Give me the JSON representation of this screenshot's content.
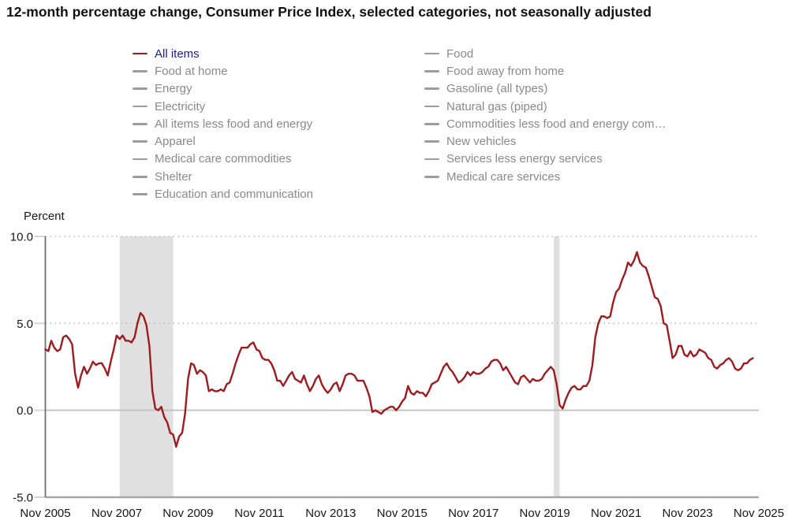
{
  "title": {
    "text": "12-month percentage change, Consumer Price Index, selected categories, not seasonally adjusted"
  },
  "legend": {
    "active_item": "All items",
    "active_label_color": "#1a1a9c",
    "active_swatch_color": "#9e1b1e",
    "inactive_label_color": "#8a8a8a",
    "inactive_swatch_color": "#9c9c9c",
    "columns": [
      {
        "items": [
          "All items",
          "Food at home",
          "Energy",
          "Electricity",
          "All items less food and energy",
          "Apparel",
          "Medical care commodities",
          "Shelter",
          "Education and communication"
        ]
      },
      {
        "items": [
          "Food",
          "Food away from home",
          "Gasoline (all types)",
          "Natural gas (piped)",
          "Commodities less food and energy com…",
          "New vehicles",
          "Services less energy services",
          "Medical care services"
        ]
      }
    ]
  },
  "chart_data": {
    "type": "line",
    "title": "12-month percentage change, Consumer Price Index, selected categories, not seasonally adjusted",
    "ylabel": "Percent",
    "xlabel": "",
    "ylim": [
      -5,
      10
    ],
    "grid": "dotted horizontal at 5 and 10, solid at 0",
    "legend_position": "top",
    "yticks": [
      {
        "value": 10,
        "label": "10.0",
        "style": "dotted"
      },
      {
        "value": 5,
        "label": "5.0",
        "style": "dotted"
      },
      {
        "value": 0,
        "label": "0.0",
        "style": "solid"
      },
      {
        "value": -5,
        "label": "-5.0",
        "style": "axis"
      }
    ],
    "x_start": "2005-11",
    "x_end": "2025-11",
    "xticks": [
      "Nov 2005",
      "Nov 2007",
      "Nov 2009",
      "Nov 2011",
      "Nov 2013",
      "Nov 2015",
      "Nov 2017",
      "Nov 2019",
      "Nov 2021",
      "Nov 2023",
      "Nov 2025"
    ],
    "xtick_interval_months": 24,
    "recession_bands": [
      {
        "from": "2007-12",
        "to": "2009-06"
      },
      {
        "from": "2020-02",
        "to": "2020-04"
      }
    ],
    "band_color": "#e0e0e0",
    "series": [
      {
        "name": "All items",
        "color": "#9e1b1e",
        "start": "2005-11",
        "frequency": "monthly",
        "values": [
          3.5,
          3.4,
          4.0,
          3.6,
          3.4,
          3.5,
          4.2,
          4.3,
          4.1,
          3.8,
          2.1,
          1.3,
          2.0,
          2.5,
          2.1,
          2.4,
          2.8,
          2.6,
          2.7,
          2.7,
          2.4,
          2.0,
          2.8,
          3.5,
          4.3,
          4.1,
          4.3,
          4.0,
          4.0,
          3.9,
          4.2,
          5.0,
          5.6,
          5.4,
          4.9,
          3.7,
          1.1,
          0.1,
          0.0,
          0.2,
          -0.4,
          -0.7,
          -1.3,
          -1.4,
          -2.1,
          -1.5,
          -1.3,
          -0.2,
          1.8,
          2.7,
          2.6,
          2.1,
          2.3,
          2.2,
          2.0,
          1.1,
          1.2,
          1.1,
          1.1,
          1.2,
          1.1,
          1.5,
          1.6,
          2.1,
          2.7,
          3.2,
          3.6,
          3.6,
          3.6,
          3.8,
          3.9,
          3.5,
          3.4,
          3.0,
          2.9,
          2.9,
          2.7,
          2.3,
          1.7,
          1.7,
          1.4,
          1.7,
          2.0,
          2.2,
          1.8,
          1.7,
          1.6,
          2.0,
          1.5,
          1.1,
          1.4,
          1.8,
          2.0,
          1.5,
          1.2,
          1.0,
          1.2,
          1.5,
          1.6,
          1.1,
          1.5,
          2.0,
          2.1,
          2.1,
          2.0,
          1.7,
          1.7,
          1.7,
          1.3,
          0.8,
          -0.1,
          0.0,
          -0.1,
          -0.2,
          0.0,
          0.1,
          0.2,
          0.2,
          0.0,
          0.2,
          0.5,
          0.7,
          1.4,
          1.0,
          0.9,
          1.1,
          1.0,
          1.0,
          0.8,
          1.1,
          1.5,
          1.6,
          1.7,
          2.1,
          2.5,
          2.7,
          2.4,
          2.2,
          1.9,
          1.6,
          1.7,
          1.9,
          2.2,
          2.0,
          2.2,
          2.1,
          2.1,
          2.2,
          2.4,
          2.5,
          2.8,
          2.9,
          2.9,
          2.7,
          2.3,
          2.5,
          2.2,
          1.9,
          1.6,
          1.5,
          1.9,
          2.0,
          1.8,
          1.6,
          1.8,
          1.7,
          1.7,
          1.8,
          2.1,
          2.3,
          2.5,
          2.3,
          1.5,
          0.3,
          0.1,
          0.6,
          1.0,
          1.3,
          1.4,
          1.2,
          1.2,
          1.4,
          1.4,
          1.7,
          2.6,
          4.2,
          5.0,
          5.4,
          5.4,
          5.3,
          5.4,
          6.2,
          6.8,
          7.0,
          7.5,
          7.9,
          8.5,
          8.3,
          8.6,
          9.1,
          8.5,
          8.3,
          8.2,
          7.7,
          7.1,
          6.5,
          6.4,
          6.0,
          5.0,
          4.9,
          4.0,
          3.0,
          3.2,
          3.7,
          3.7,
          3.2,
          3.1,
          3.4,
          3.1,
          3.2,
          3.5,
          3.4,
          3.3,
          3.0,
          2.9,
          2.5,
          2.4,
          2.6,
          2.7,
          2.9,
          3.0,
          2.8,
          2.4,
          2.3,
          2.4,
          2.7,
          2.7,
          2.9,
          3.0
        ]
      }
    ]
  }
}
